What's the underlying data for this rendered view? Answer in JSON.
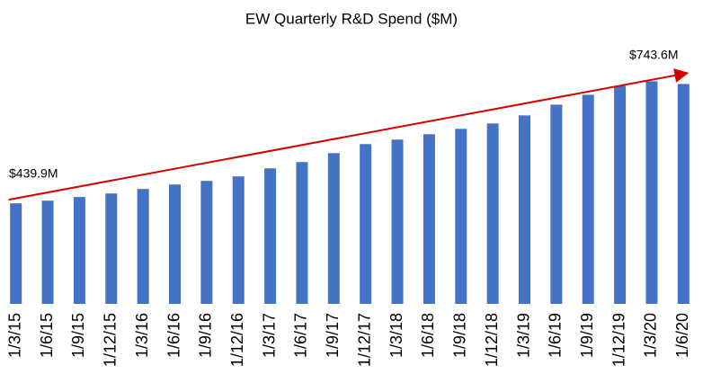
{
  "chart_data": {
    "type": "bar",
    "title": "EW Quarterly R&D  Spend ($M)",
    "categories": [
      "1/3/15",
      "1/6/15",
      "1/9/15",
      "1/12/15",
      "1/3/16",
      "1/6/16",
      "1/9/16",
      "1/12/16",
      "1/3/17",
      "1/6/17",
      "1/9/17",
      "1/12/17",
      "1/3/18",
      "1/6/18",
      "1/9/18",
      "1/12/18",
      "1/3/19",
      "1/6/19",
      "1/9/19",
      "1/12/19",
      "1/3/20",
      "1/6/20"
    ],
    "values": [
      439.9,
      446.7,
      455.9,
      465.0,
      476.4,
      487.8,
      497.0,
      508.4,
      528.9,
      544.9,
      567.7,
      590.6,
      602.0,
      615.7,
      629.4,
      643.1,
      663.6,
      691.0,
      716.1,
      739.0,
      750.4,
      743.6
    ],
    "color": "#4472c4",
    "ylim": [
      184,
      820
    ],
    "annotations": [
      "$439.9M",
      "$743.6M"
    ],
    "trend_color": "#d40000"
  }
}
